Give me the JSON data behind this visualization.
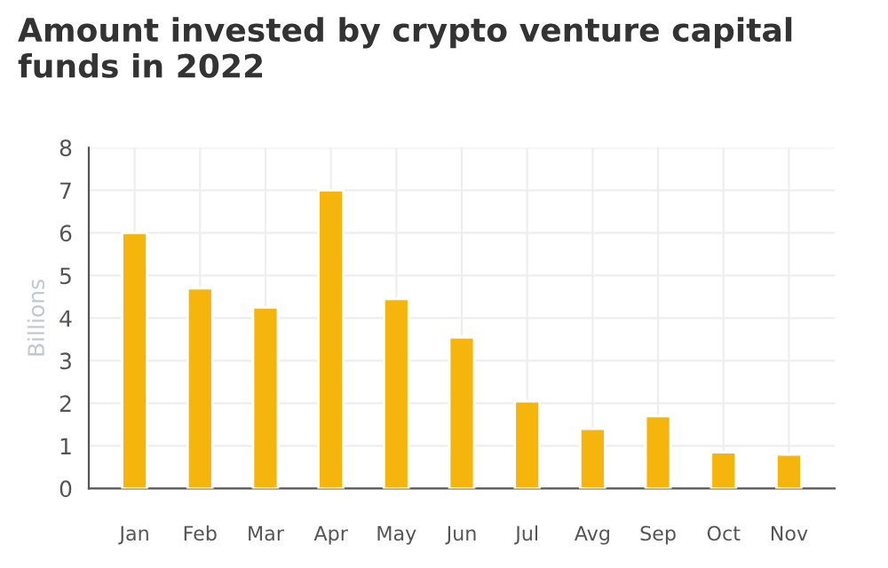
{
  "chart_data": {
    "type": "bar",
    "title": "Amount invested by crypto venture capital\nfunds in 2022",
    "ylabel": "Billions",
    "categories": [
      "Jan",
      "Feb",
      "Mar",
      "Apr",
      "May",
      "Jun",
      "Jul",
      "Avg",
      "Sep",
      "Oct",
      "Nov"
    ],
    "values": [
      6.0,
      4.7,
      4.25,
      7.0,
      4.45,
      3.55,
      2.05,
      1.4,
      1.7,
      0.85,
      0.8
    ],
    "color": "#f5b50c",
    "ylim": [
      0,
      8
    ],
    "yticks": [
      0,
      1,
      2,
      3,
      4,
      5,
      6,
      7,
      8
    ],
    "grid": true
  }
}
